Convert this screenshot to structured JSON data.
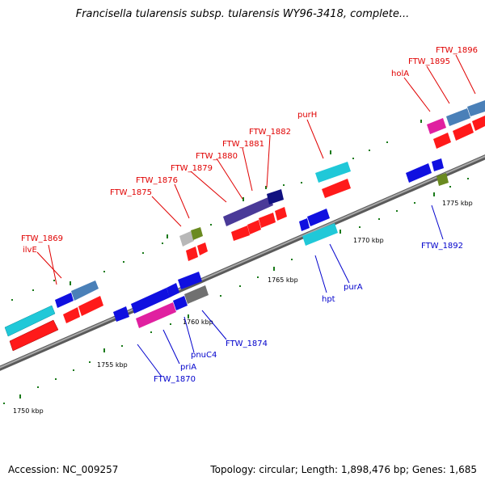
{
  "title": "Francisella tularensis subsp. tularensis WY96-3418, complete...",
  "footer": {
    "accession": "Accession: NC_009257",
    "topology": "Topology: circular; Length: 1,898,476 bp; Genes: 1,685"
  },
  "scale_labels": [
    "1750 kbp",
    "1755 kbp",
    "1760 kbp",
    "1765 kbp",
    "1770 kbp",
    "1775 kbp"
  ],
  "forward_gene_labels": [
    "FTW_1869",
    "ilvE",
    "FTW_1875",
    "FTW_1876",
    "FTW_1879",
    "FTW_1880",
    "FTW_1881",
    "FTW_1882",
    "purH",
    "holA",
    "FTW_1895",
    "FTW_1896"
  ],
  "reverse_gene_labels": [
    "FTW_1870",
    "priA",
    "pnuC4",
    "FTW_1874",
    "hpt",
    "purA",
    "FTW_1892"
  ],
  "colors": {
    "label_forward": "#e00000",
    "label_reverse": "#0000cc",
    "backbone": "#8c8c8c",
    "tick": "#1a7a1a",
    "cds_red": "#ff1a1a",
    "cds_blue": "#1010e0",
    "cds_cyan": "#20c8d8",
    "cds_steel": "#4a80b8",
    "cds_magenta": "#e020a0",
    "cds_navy": "#101080",
    "cds_slate": "#4a3a98",
    "cds_gray": "#707070",
    "cds_olive": "#6a8a20",
    "cds_lightgray": "#b8b8b8"
  }
}
